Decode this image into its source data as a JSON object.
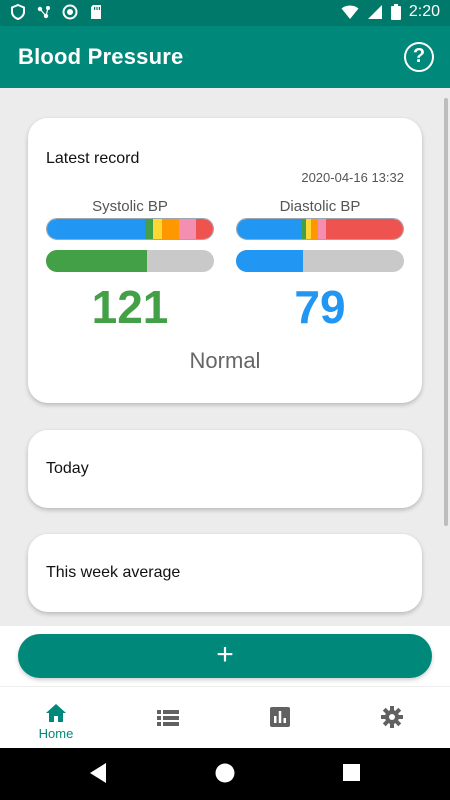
{
  "status_bar": {
    "time": "2:20"
  },
  "app_bar": {
    "title": "Blood Pressure",
    "help_icon": "?"
  },
  "latest": {
    "title": "Latest record",
    "timestamp": "2020-04-16 13:32",
    "systolic": {
      "label": "Systolic BP",
      "value": "121",
      "level_fraction": 0.6,
      "level_color": "#43a047",
      "scale_colors": [
        {
          "color": "#2196f3",
          "weight": 98
        },
        {
          "color": "#43a047",
          "weight": 8
        },
        {
          "color": "#fdd835",
          "weight": 9
        },
        {
          "color": "#ff9800",
          "weight": 17
        },
        {
          "color": "#f48fb1",
          "weight": 17
        },
        {
          "color": "#ef5350",
          "weight": 17
        }
      ]
    },
    "diastolic": {
      "label": "Diastolic BP",
      "value": "79",
      "level_fraction": 0.4,
      "level_color": "#2196f3",
      "scale_colors": [
        {
          "color": "#2196f3",
          "weight": 66
        },
        {
          "color": "#43a047",
          "weight": 4
        },
        {
          "color": "#fdd835",
          "weight": 5
        },
        {
          "color": "#ff9800",
          "weight": 7
        },
        {
          "color": "#f48fb1",
          "weight": 8
        },
        {
          "color": "#ef5350",
          "weight": 78
        }
      ]
    },
    "status": "Normal"
  },
  "today": {
    "title": "Today"
  },
  "week": {
    "title": "This week average"
  },
  "add_button": {
    "label": "+"
  },
  "nav": {
    "home_label": "Home"
  },
  "colors": {
    "primary": "#00897b",
    "status_bar": "#00796b"
  }
}
